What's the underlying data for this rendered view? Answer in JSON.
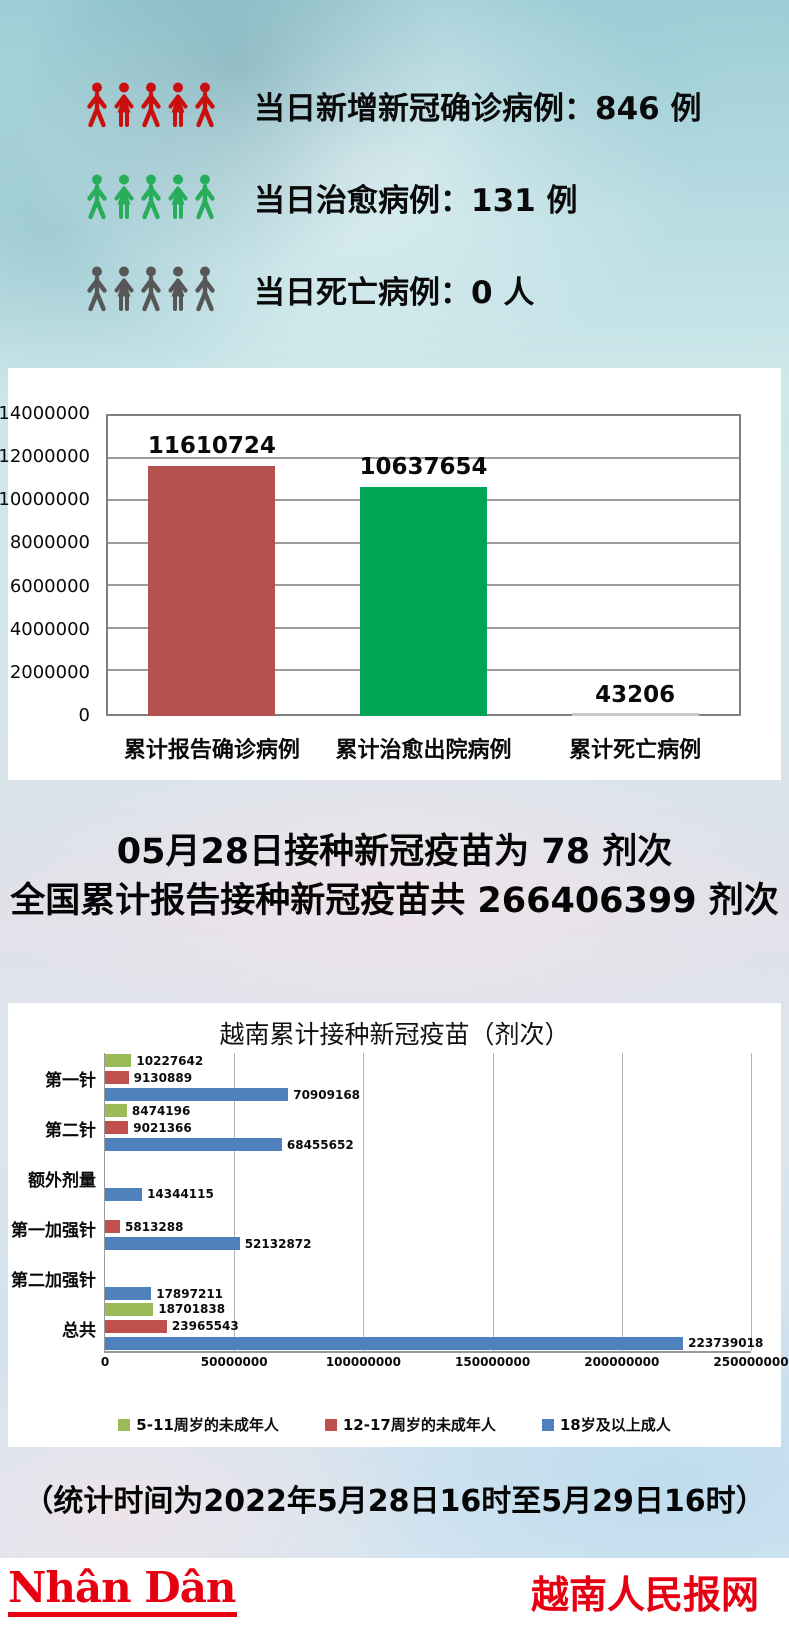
{
  "daily_stats": {
    "rows": [
      {
        "id": "new-confirmed",
        "text": "当日新增新冠确诊病例：846 例",
        "icon": "people-group-icon",
        "icon_color": "#c9100f"
      },
      {
        "id": "recovered",
        "text": "当日治愈病例：131 例",
        "icon": "people-group-icon",
        "icon_color": "#28ad5b"
      },
      {
        "id": "deaths",
        "text": "当日死亡病例：0 人",
        "icon": "people-group-icon",
        "icon_color": "#575757"
      }
    ]
  },
  "vaccine_summary": {
    "line1": "05月28日接种新冠疫苗为 78 剂次",
    "line2": "全国累计报告接种新冠疫苗共 266406399 剂次"
  },
  "footnote": "（统计时间为2022年5月28日16时至5月29日16时）",
  "footer": {
    "logo_text": "Nhân Dân",
    "site_name": "越南人民报网",
    "brand_color": "#e60012"
  },
  "chart_data": [
    {
      "type": "bar",
      "orientation": "vertical",
      "title": "",
      "categories": [
        "累计报告确诊病例",
        "累计治愈出院病例",
        "累计死亡病例"
      ],
      "values": [
        11610724,
        10637654,
        43206
      ],
      "bar_colors": [
        "#b5514e",
        "#00a455",
        "#c9c9c9"
      ],
      "ylim": [
        0,
        14000000
      ],
      "yticks": [
        0,
        2000000,
        4000000,
        6000000,
        8000000,
        10000000,
        12000000,
        14000000
      ],
      "grid": true,
      "legend_position": "none"
    },
    {
      "type": "bar",
      "orientation": "horizontal",
      "title": "越南累计接种新冠疫苗（剂次）",
      "categories": [
        "第一针",
        "第二针",
        "额外剂量",
        "第一加强针",
        "第二加强针",
        "总共"
      ],
      "series": [
        {
          "name": "5-11周岁的未成年人",
          "color": "#9bbb59",
          "values": [
            10227642,
            8474196,
            0,
            0,
            0,
            18701838
          ]
        },
        {
          "name": "12-17周岁的未成年人",
          "color": "#c0504d",
          "values": [
            9130889,
            9021366,
            0,
            5813288,
            0,
            23965543
          ]
        },
        {
          "name": "18岁及以上成人",
          "color": "#4f81bd",
          "values": [
            70909168,
            68455652,
            14344115,
            52132872,
            17897211,
            223739018
          ]
        }
      ],
      "xlim": [
        0,
        250000000
      ],
      "xticks": [
        0,
        50000000,
        100000000,
        150000000,
        200000000,
        250000000
      ],
      "grid": true,
      "legend_position": "bottom"
    }
  ]
}
